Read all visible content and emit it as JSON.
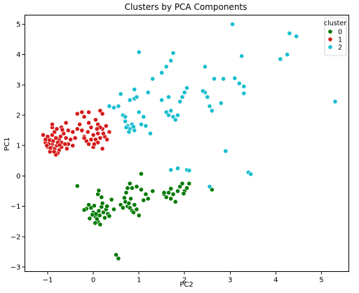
{
  "chart_data": {
    "type": "scatter",
    "title": "Clusters by PCA Components",
    "xlabel": "PC2",
    "ylabel": "PC1",
    "xlim": [
      -1.5,
      5.6
    ],
    "ylim": [
      -3.15,
      5.3
    ],
    "xticks": [
      -1,
      0,
      1,
      2,
      3,
      4,
      5
    ],
    "yticks": [
      -3,
      -2,
      -1,
      0,
      1,
      2,
      3,
      4,
      5
    ],
    "legend": {
      "title": "cluster",
      "placement": "top-right"
    },
    "series": [
      {
        "name": "0",
        "color": "#007a00",
        "points": [
          [
            -0.35,
            -0.33
          ],
          [
            -0.1,
            -0.95
          ],
          [
            -0.05,
            -1.05
          ],
          [
            0.0,
            -1.2
          ],
          [
            0.05,
            -1.35
          ],
          [
            0.1,
            -1.5
          ],
          [
            0.15,
            -1.6
          ],
          [
            0.08,
            -1.42
          ],
          [
            -0.02,
            -1.28
          ],
          [
            0.12,
            -1.15
          ],
          [
            0.18,
            -1.02
          ],
          [
            0.22,
            -1.2
          ],
          [
            0.28,
            -1.1
          ],
          [
            0.32,
            -1.25
          ],
          [
            0.25,
            -1.38
          ],
          [
            0.3,
            -1.0
          ],
          [
            -0.15,
            -1.08
          ],
          [
            -0.2,
            -1.12
          ],
          [
            0.02,
            -0.98
          ],
          [
            0.35,
            -1.32
          ],
          [
            0.14,
            -1.3
          ],
          [
            0.06,
            -1.25
          ],
          [
            0.1,
            -0.6
          ],
          [
            0.18,
            -0.7
          ],
          [
            0.4,
            -0.78
          ],
          [
            0.45,
            -1.1
          ],
          [
            0.12,
            -0.48
          ],
          [
            0.2,
            -0.9
          ],
          [
            -0.08,
            -1.4
          ],
          [
            0.04,
            -1.55
          ],
          [
            0.5,
            -2.6
          ],
          [
            0.55,
            -2.72
          ],
          [
            0.7,
            -0.85
          ],
          [
            0.75,
            -1.0
          ],
          [
            0.8,
            -1.05
          ],
          [
            0.85,
            -1.15
          ],
          [
            0.9,
            -0.95
          ],
          [
            0.95,
            -1.1
          ],
          [
            0.88,
            -1.2
          ],
          [
            0.78,
            -0.9
          ],
          [
            0.72,
            -0.55
          ],
          [
            0.75,
            -0.4
          ],
          [
            0.85,
            -0.4
          ],
          [
            0.8,
            -0.25
          ],
          [
            0.95,
            -0.35
          ],
          [
            1.05,
            -0.45
          ],
          [
            1.15,
            -0.6
          ],
          [
            1.1,
            -0.8
          ],
          [
            1.2,
            -0.75
          ],
          [
            1.3,
            -0.5
          ],
          [
            1.05,
            0.07
          ],
          [
            0.6,
            -0.95
          ],
          [
            0.65,
            -1.05
          ],
          [
            0.68,
            -0.72
          ],
          [
            0.82,
            -0.75
          ],
          [
            1.0,
            -1.3
          ],
          [
            1.6,
            -0.7
          ],
          [
            1.7,
            -0.75
          ],
          [
            1.75,
            -0.6
          ],
          [
            1.8,
            -0.85
          ],
          [
            1.65,
            -0.55
          ],
          [
            1.85,
            -0.5
          ],
          [
            1.9,
            -0.35
          ],
          [
            2.0,
            -0.5
          ],
          [
            2.05,
            -0.4
          ],
          [
            2.1,
            -0.25
          ],
          [
            1.55,
            -0.6
          ],
          [
            1.95,
            -0.25
          ],
          [
            2.6,
            -0.45
          ],
          [
            1.7,
            -0.42
          ],
          [
            1.55,
            -0.55
          ],
          [
            1.98,
            -0.58
          ]
        ]
      },
      {
        "name": "1",
        "color": "#d41a1a",
        "points": [
          [
            -1.1,
            1.35
          ],
          [
            -1.05,
            1.1
          ],
          [
            -1.0,
            0.95
          ],
          [
            -0.95,
            1.2
          ],
          [
            -0.9,
            1.05
          ],
          [
            -0.85,
            0.9
          ],
          [
            -0.8,
            1.0
          ],
          [
            -0.75,
            0.85
          ],
          [
            -0.7,
            0.95
          ],
          [
            -0.95,
            0.8
          ],
          [
            -0.9,
            1.35
          ],
          [
            -1.0,
            1.3
          ],
          [
            -0.85,
            1.45
          ],
          [
            -0.75,
            1.2
          ],
          [
            -0.7,
            1.1
          ],
          [
            -1.05,
            1.2
          ],
          [
            -0.98,
            1.05
          ],
          [
            -0.92,
            0.95
          ],
          [
            -0.88,
            1.15
          ],
          [
            -0.82,
            1.25
          ],
          [
            -0.78,
            1.1
          ],
          [
            -0.72,
            1.3
          ],
          [
            -0.9,
            1.6
          ],
          [
            -0.8,
            1.55
          ],
          [
            -0.65,
            1.4
          ],
          [
            -0.6,
            1.25
          ],
          [
            -0.55,
            1.05
          ],
          [
            -0.5,
            1.2
          ],
          [
            -0.45,
            1.0
          ],
          [
            -0.55,
            1.5
          ],
          [
            -0.45,
            1.45
          ],
          [
            -0.35,
            1.55
          ],
          [
            -0.25,
            1.5
          ],
          [
            -0.2,
            1.3
          ],
          [
            -0.15,
            1.15
          ],
          [
            -0.1,
            1.05
          ],
          [
            -0.05,
            1.2
          ],
          [
            0.0,
            1.35
          ],
          [
            0.05,
            1.2
          ],
          [
            0.1,
            1.4
          ],
          [
            0.15,
            1.25
          ],
          [
            0.2,
            1.55
          ],
          [
            0.25,
            1.3
          ],
          [
            0.3,
            1.2
          ],
          [
            0.35,
            1.45
          ],
          [
            -0.05,
            1.6
          ],
          [
            -0.1,
            1.75
          ],
          [
            0.05,
            1.85
          ],
          [
            0.1,
            1.7
          ],
          [
            0.15,
            1.6
          ],
          [
            0.0,
            0.95
          ],
          [
            0.1,
            1.1
          ],
          [
            0.2,
            0.9
          ],
          [
            -0.35,
            2.05
          ],
          [
            -0.25,
            2.1
          ],
          [
            -0.2,
            1.95
          ],
          [
            -0.1,
            2.1
          ],
          [
            0.15,
            2.15
          ],
          [
            0.2,
            2.05
          ],
          [
            -0.6,
            1.75
          ],
          [
            -0.7,
            1.6
          ],
          [
            -0.9,
            1.7
          ],
          [
            -0.68,
            1.52
          ],
          [
            -0.3,
            1.7
          ],
          [
            -0.12,
            1.45
          ],
          [
            0.08,
            1.55
          ],
          [
            0.22,
            1.4
          ],
          [
            0.28,
            1.65
          ],
          [
            -0.4,
            1.25
          ],
          [
            -0.62,
            1.05
          ],
          [
            -0.58,
            0.9
          ],
          [
            -0.78,
            0.75
          ],
          [
            -0.82,
            0.7
          ],
          [
            -0.86,
            0.8
          ],
          [
            -0.94,
            0.92
          ],
          [
            -1.02,
            1.0
          ],
          [
            -0.96,
            1.18
          ],
          [
            -0.74,
            1.02
          ],
          [
            0.02,
            1.05
          ],
          [
            -0.2,
            1.25
          ]
        ]
      },
      {
        "name": "2",
        "color": "#17becf",
        "points": [
          [
            0.7,
            1.8
          ],
          [
            0.75,
            1.65
          ],
          [
            0.8,
            1.55
          ],
          [
            0.85,
            1.7
          ],
          [
            0.9,
            1.5
          ],
          [
            0.78,
            1.45
          ],
          [
            0.72,
            1.6
          ],
          [
            0.88,
            1.62
          ],
          [
            0.65,
            2.0
          ],
          [
            0.7,
            1.95
          ],
          [
            0.55,
            2.3
          ],
          [
            0.45,
            2.25
          ],
          [
            0.35,
            2.3
          ],
          [
            0.6,
            2.7
          ],
          [
            0.8,
            2.5
          ],
          [
            0.9,
            2.55
          ],
          [
            0.9,
            2.85
          ],
          [
            1.0,
            2.1
          ],
          [
            1.1,
            1.95
          ],
          [
            1.05,
            1.7
          ],
          [
            1.15,
            1.65
          ],
          [
            1.2,
            2.75
          ],
          [
            1.3,
            3.2
          ],
          [
            1.0,
            4.08
          ],
          [
            1.6,
            2.1
          ],
          [
            1.65,
            2.0
          ],
          [
            1.7,
            2.15
          ],
          [
            1.75,
            1.95
          ],
          [
            1.8,
            1.85
          ],
          [
            1.85,
            2.0
          ],
          [
            1.5,
            2.5
          ],
          [
            1.65,
            2.6
          ],
          [
            1.7,
            3.8
          ],
          [
            1.6,
            3.6
          ],
          [
            1.75,
            4.05
          ],
          [
            1.5,
            3.4
          ],
          [
            1.9,
            2.45
          ],
          [
            2.0,
            2.75
          ],
          [
            2.05,
            2.9
          ],
          [
            1.95,
            2.6
          ],
          [
            1.25,
            1.4
          ],
          [
            2.45,
            2.75
          ],
          [
            2.5,
            2.6
          ],
          [
            2.4,
            2.8
          ],
          [
            2.55,
            2.3
          ],
          [
            2.45,
            3.6
          ],
          [
            2.6,
            2.15
          ],
          [
            2.65,
            3.2
          ],
          [
            2.85,
            3.2
          ],
          [
            2.8,
            2.4
          ],
          [
            2.9,
            0.82
          ],
          [
            3.05,
            5.0
          ],
          [
            3.1,
            3.22
          ],
          [
            3.2,
            3.05
          ],
          [
            3.25,
            3.95
          ],
          [
            3.3,
            2.95
          ],
          [
            3.3,
            2.72
          ],
          [
            3.4,
            0.12
          ],
          [
            3.45,
            0.06
          ],
          [
            4.1,
            3.85
          ],
          [
            4.25,
            4.0
          ],
          [
            4.3,
            4.7
          ],
          [
            4.45,
            4.6
          ],
          [
            5.3,
            2.45
          ],
          [
            1.7,
            0.2
          ],
          [
            1.85,
            0.25
          ],
          [
            2.05,
            0.2
          ],
          [
            2.1,
            0.18
          ],
          [
            2.55,
            -0.35
          ],
          [
            0.95,
            2.6
          ]
        ]
      }
    ]
  }
}
